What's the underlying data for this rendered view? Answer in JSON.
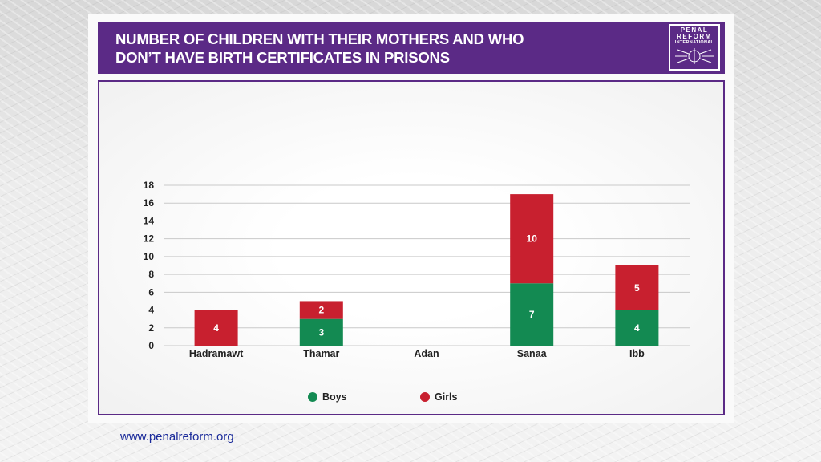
{
  "header": {
    "title_line1": "NUMBER OF CHILDREN WITH THEIR MOTHERS AND WHO",
    "title_line2": "DON’T HAVE  BIRTH CERTIFICATES IN PRISONS",
    "logo_line1": "PENAL",
    "logo_line2": "REFORM",
    "logo_line3": "INTERNATIONAL"
  },
  "footer": {
    "url": "www.penalreform.org"
  },
  "colors": {
    "brand_purple": "#5b2a86",
    "boys": "#138a52",
    "girls": "#c8202f"
  },
  "chart_data": {
    "type": "bar",
    "stacked": true,
    "categories": [
      "Hadramawt",
      "Thamar",
      "Adan",
      "Sanaa",
      "Ibb"
    ],
    "series": [
      {
        "name": "Boys",
        "color": "#138a52",
        "values": [
          0,
          3,
          0,
          7,
          4
        ]
      },
      {
        "name": "Girls",
        "color": "#c8202f",
        "values": [
          4,
          2,
          0,
          10,
          5
        ]
      }
    ],
    "data_labels": [
      [
        "",
        "3",
        "",
        "7",
        "4"
      ],
      [
        "4",
        "2",
        "",
        "10",
        "5"
      ]
    ],
    "ylim": [
      0,
      18
    ],
    "yticks": [
      "0",
      "2",
      "4",
      "6",
      "8",
      "10",
      "12",
      "14",
      "16",
      "18"
    ],
    "grid": true,
    "legend_position": "bottom"
  }
}
